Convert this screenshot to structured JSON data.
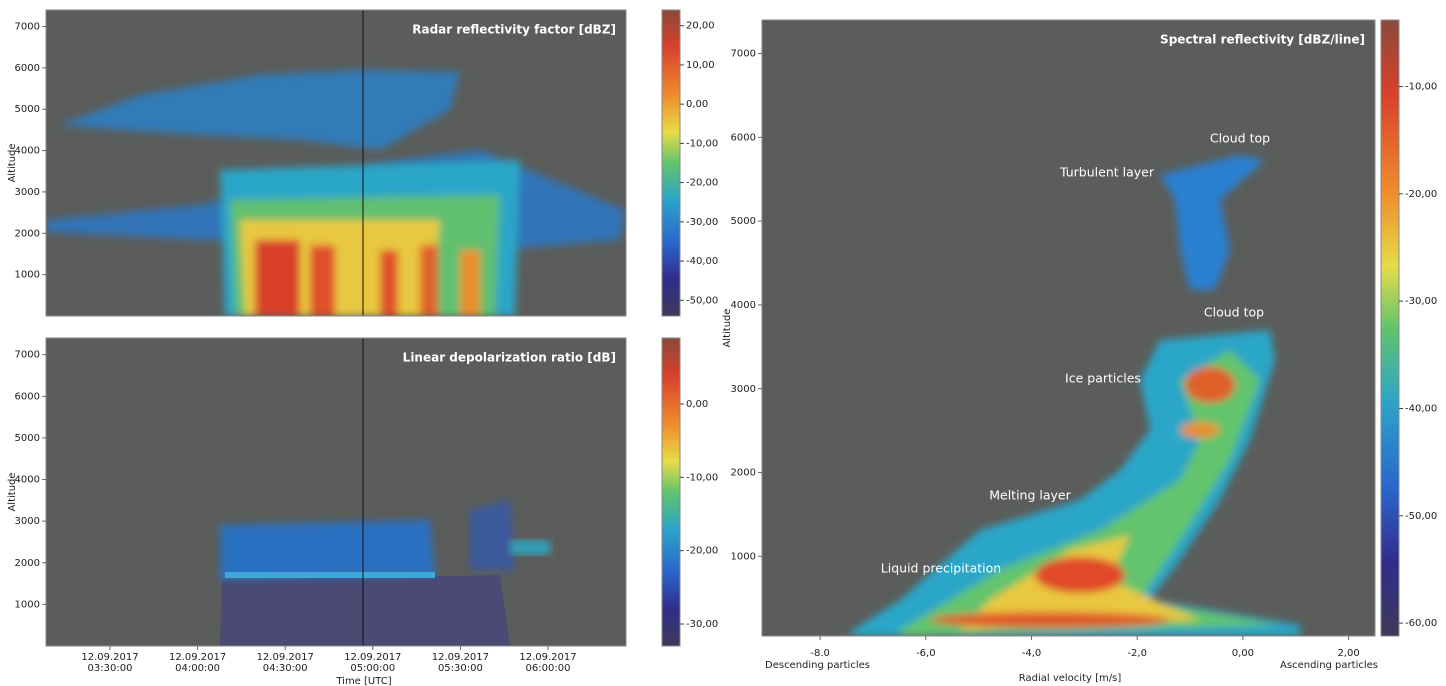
{
  "plots": [
    {
      "title": "Radar reflectivity factor [dBZ]",
      "y_label": "Altitude",
      "ylim": [
        0,
        7400
      ],
      "yticks": [
        1000,
        2000,
        3000,
        4000,
        5000,
        6000,
        7000
      ],
      "colorbar": {
        "lim": [
          -54,
          24
        ],
        "ticks": [
          {
            "value": 20,
            "label": "20,00"
          },
          {
            "value": 10,
            "label": "10,00"
          },
          {
            "value": 0,
            "label": "0,00"
          },
          {
            "value": -10,
            "label": "-10,00"
          },
          {
            "value": -20,
            "label": "-20,00"
          },
          {
            "value": -30,
            "label": "-30,00"
          },
          {
            "value": -40,
            "label": "-40,00"
          },
          {
            "value": -50,
            "label": "-50,00"
          }
        ]
      }
    },
    {
      "title": "Linear depolarization ratio [dB]",
      "y_label": "Altitude",
      "ylim": [
        0,
        7400
      ],
      "yticks": [
        1000,
        2000,
        3000,
        4000,
        5000,
        6000,
        7000
      ],
      "colorbar": {
        "lim": [
          -33,
          9
        ],
        "ticks": [
          {
            "value": 0,
            "label": "0,00"
          },
          {
            "value": -10,
            "label": "-10,00"
          },
          {
            "value": -20,
            "label": "-20,00"
          },
          {
            "value": -30,
            "label": "-30,00"
          }
        ]
      },
      "x_label": "Time [UTC]",
      "xticks": [
        {
          "date": "12.09.2017",
          "time": "03:30:00"
        },
        {
          "date": "12.09.2017",
          "time": "04:00:00"
        },
        {
          "date": "12.09.2017",
          "time": "04:30:00"
        },
        {
          "date": "12.09.2017",
          "time": "05:00:00"
        },
        {
          "date": "12.09.2017",
          "time": "05:30:00"
        },
        {
          "date": "12.09.2017",
          "time": "06:00:00"
        }
      ]
    },
    {
      "title": "Spectral reflectivity [dBZ/line]",
      "y_label": "Altitude",
      "ylim": [
        50,
        7400
      ],
      "yticks": [
        1000,
        2000,
        3000,
        4000,
        5000,
        6000,
        7000
      ],
      "colorbar": {
        "lim": [
          -61.2,
          -3.8
        ],
        "ticks": [
          {
            "value": -10,
            "label": "-10,00"
          },
          {
            "value": -20,
            "label": "-20,00"
          },
          {
            "value": -30,
            "label": "-30,00"
          },
          {
            "value": -40,
            "label": "-40,00"
          },
          {
            "value": -50,
            "label": "-50,00"
          },
          {
            "value": -60,
            "label": "-60,00"
          }
        ]
      },
      "x_label": "Radial velocity [m/s]",
      "xlim": [
        -9.1,
        2.5
      ],
      "xticks": [
        {
          "value": -8,
          "label": "-8.0"
        },
        {
          "value": -6,
          "label": "-6,0"
        },
        {
          "value": -4,
          "label": "-4,0"
        },
        {
          "value": -2,
          "label": "-2,0"
        },
        {
          "value": 0,
          "label": "0,00"
        },
        {
          "value": 2,
          "label": "2,00"
        }
      ],
      "x_end_labels": [
        "Descending particles",
        "Ascending particles"
      ],
      "annotations": [
        "Cloud top",
        "Turbulent layer",
        "Cloud top",
        "Ice particles",
        "Melting layer",
        "Liquid precipitation"
      ]
    }
  ]
}
